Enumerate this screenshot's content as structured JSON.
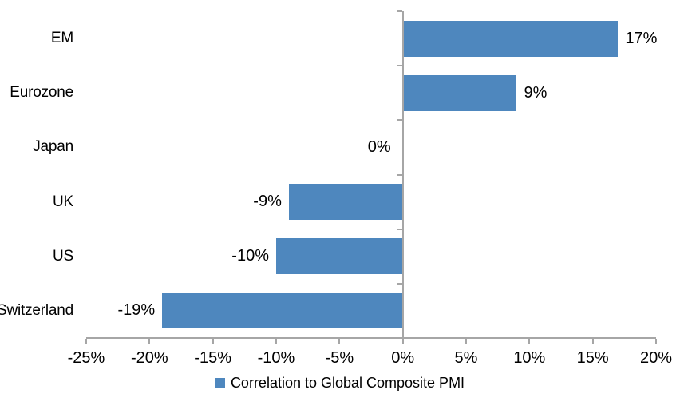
{
  "chart_data": {
    "type": "bar",
    "orientation": "horizontal",
    "categories": [
      "EM",
      "Eurozone",
      "Japan",
      "UK",
      "US",
      "Switzerland"
    ],
    "series": [
      {
        "name": "Correlation to Global Composite PMI",
        "values": [
          17,
          9,
          0,
          -9,
          -10,
          -19
        ],
        "data_labels": [
          "17%",
          "9%",
          "0%",
          "-9%",
          "-10%",
          "-19%"
        ]
      }
    ],
    "xlim": [
      -25,
      20
    ],
    "x_tick_values": [
      -25,
      -20,
      -15,
      -10,
      -5,
      0,
      5,
      10,
      15,
      20
    ],
    "x_tick_labels": [
      "-25%",
      "-20%",
      "-15%",
      "-10%",
      "-5%",
      "0%",
      "5%",
      "10%",
      "15%",
      "20%"
    ],
    "grid": false,
    "legend_position": "bottom",
    "colors": {
      "bar": "#4E87BE",
      "axis": "#A6A6A6",
      "text": "#000000",
      "background": "#FFFFFF"
    }
  },
  "legend": {
    "label": "Correlation to Global Composite PMI",
    "swatch_color": "#4E87BE"
  }
}
